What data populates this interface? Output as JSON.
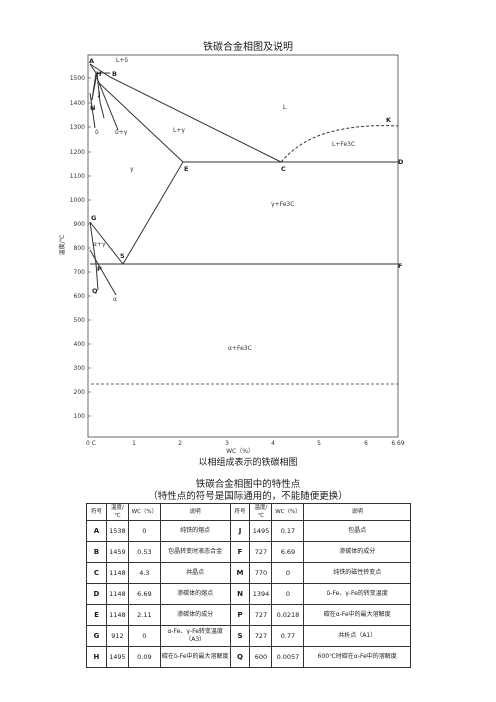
{
  "title": "铁碳合金相图及说明",
  "caption": "以相组成表示的铁碳相图",
  "table_title": "铁碳合金相图中的特性点",
  "table_subtitle": "（特性点的符号是国际通用的，不能随便更换）",
  "diagram": {
    "y_axis_label": "温度/℃",
    "x_axis_label": "WC（%）",
    "y_ticks": [
      "1500",
      "1400",
      "1300",
      "1200",
      "1100",
      "1000",
      "900",
      "800",
      "700",
      "600",
      "500",
      "400",
      "300",
      "200",
      "100"
    ],
    "x_ticks": [
      "0 C",
      "1",
      "2",
      "3",
      "4",
      "5",
      "6",
      "6.69"
    ],
    "point_labels": [
      "A",
      "H",
      "B",
      "N",
      "J",
      "E",
      "C",
      "D",
      "G",
      "S",
      "P",
      "Q",
      "K",
      "F"
    ],
    "phase_labels": [
      "L+δ",
      "δ",
      "δ+γ",
      "L+γ",
      "γ",
      "L",
      "L+Fe3C",
      "γ+Fe3C",
      "α+γ",
      "α",
      "α+Fe3C"
    ]
  },
  "table": {
    "headers": [
      "符号",
      "温度/℃",
      "WC（%）",
      "说明",
      "符号",
      "温度/℃",
      "WC（%）",
      "说明"
    ],
    "rows": [
      [
        "A",
        "1538",
        "0",
        "纯铁的熔点",
        "J",
        "1495",
        "0.17",
        "包晶点"
      ],
      [
        "B",
        "1459",
        "0.53",
        "包晶转变时液态合金",
        "F",
        "727",
        "6.69",
        "渗碳体的成分"
      ],
      [
        "C",
        "1148",
        "4.3",
        "共晶点",
        "M",
        "770",
        "0",
        "纯铁的磁性转变点"
      ],
      [
        "D",
        "1148",
        "6.69",
        "渗碳体的熔点",
        "N",
        "1394",
        "0",
        "δ-Fe、γ-Fe的转变温度"
      ],
      [
        "E",
        "1148",
        "2.11",
        "渗碳体的成分",
        "P",
        "727",
        "0.0218",
        "碳在α-Fe中的最大溶解度"
      ],
      [
        "G",
        "912",
        "0",
        "α-Fe、γ-Fe转变温度（A3）",
        "S",
        "727",
        "0.77",
        "共析点（A1）"
      ],
      [
        "H",
        "1495",
        "0.09",
        "碳在δ-Fe中的最大溶解度",
        "Q",
        "600",
        "0.0057",
        "600℃时碳在α-Fe中的溶解度"
      ]
    ]
  }
}
